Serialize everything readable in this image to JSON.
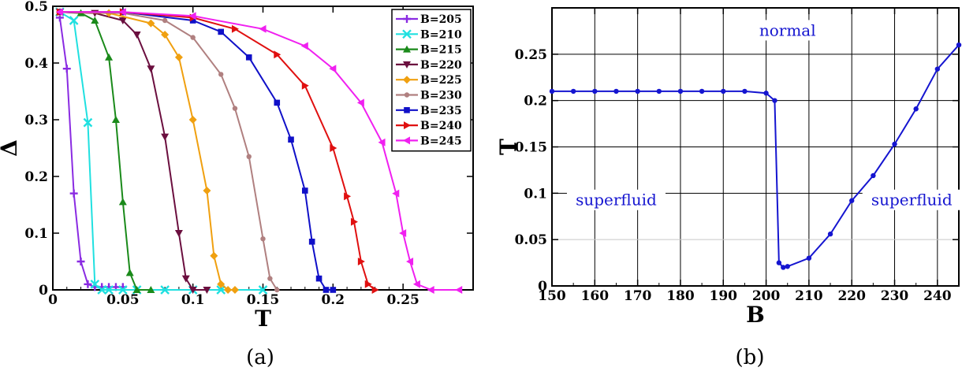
{
  "captions": [
    "(a)",
    "(b)"
  ],
  "chart_data": [
    {
      "type": "line",
      "xlabel": "T",
      "ylabel": "Δ",
      "xlim": [
        0,
        0.3
      ],
      "ylim": [
        0,
        0.5
      ],
      "x_ticks": [
        0,
        0.05,
        0.1,
        0.15,
        0.2,
        0.25
      ],
      "x_tick_labels": [
        "0",
        "0.05",
        "0.1",
        "0.15",
        "0.2",
        "0.25"
      ],
      "y_ticks": [
        0,
        0.1,
        0.2,
        0.3,
        0.4,
        0.5
      ],
      "y_tick_labels": [
        "0",
        "0.1",
        "0.2",
        "0.3",
        "0.4",
        "0.5"
      ],
      "grid": false,
      "legend_position": "top-right",
      "series": [
        {
          "name": "B=205",
          "color": "#8a2be2",
          "marker": "plus",
          "x": [
            0.005,
            0.01,
            0.015,
            0.02,
            0.025,
            0.03,
            0.035,
            0.04,
            0.045,
            0.05
          ],
          "y": [
            0.48,
            0.39,
            0.17,
            0.05,
            0.01,
            0.005,
            0.005,
            0.005,
            0.005,
            0.005
          ]
        },
        {
          "name": "B=210",
          "color": "#20e0e0",
          "marker": "x",
          "x": [
            0.005,
            0.015,
            0.025,
            0.03,
            0.035,
            0.04,
            0.05,
            0.06,
            0.08,
            0.1,
            0.12,
            0.15
          ],
          "y": [
            0.49,
            0.475,
            0.295,
            0.01,
            0.0,
            0.0,
            0.0,
            0.0,
            0.0,
            0.0,
            0.0,
            0.0
          ]
        },
        {
          "name": "B=215",
          "color": "#1a8a1a",
          "marker": "triangle-up",
          "x": [
            0.005,
            0.02,
            0.03,
            0.04,
            0.045,
            0.05,
            0.055,
            0.06,
            0.07
          ],
          "y": [
            0.49,
            0.488,
            0.475,
            0.41,
            0.3,
            0.155,
            0.03,
            0.0,
            0.0
          ]
        },
        {
          "name": "B=220",
          "color": "#6b0f3f",
          "marker": "triangle-down",
          "x": [
            0.005,
            0.03,
            0.05,
            0.06,
            0.07,
            0.08,
            0.09,
            0.095,
            0.1,
            0.11
          ],
          "y": [
            0.49,
            0.488,
            0.475,
            0.45,
            0.39,
            0.27,
            0.1,
            0.02,
            0.0,
            0.0
          ]
        },
        {
          "name": "B=225",
          "color": "#f0a010",
          "marker": "diamond",
          "x": [
            0.005,
            0.04,
            0.07,
            0.08,
            0.09,
            0.1,
            0.11,
            0.115,
            0.12,
            0.125,
            0.13
          ],
          "y": [
            0.49,
            0.488,
            0.47,
            0.45,
            0.41,
            0.3,
            0.175,
            0.06,
            0.01,
            0.0,
            0.0
          ]
        },
        {
          "name": "B=230",
          "color": "#b08080",
          "marker": "circle",
          "x": [
            0.005,
            0.05,
            0.08,
            0.1,
            0.12,
            0.13,
            0.14,
            0.15,
            0.155,
            0.16
          ],
          "y": [
            0.49,
            0.488,
            0.475,
            0.445,
            0.38,
            0.32,
            0.235,
            0.09,
            0.02,
            0.0
          ]
        },
        {
          "name": "B=235",
          "color": "#1010c8",
          "marker": "square",
          "x": [
            0.005,
            0.05,
            0.1,
            0.12,
            0.14,
            0.16,
            0.17,
            0.18,
            0.185,
            0.19,
            0.195,
            0.2
          ],
          "y": [
            0.49,
            0.49,
            0.475,
            0.455,
            0.41,
            0.33,
            0.265,
            0.175,
            0.085,
            0.02,
            0.0,
            0.0
          ]
        },
        {
          "name": "B=240",
          "color": "#e01010",
          "marker": "triangle-right",
          "x": [
            0.005,
            0.05,
            0.1,
            0.13,
            0.16,
            0.18,
            0.2,
            0.21,
            0.215,
            0.22,
            0.225,
            0.23
          ],
          "y": [
            0.49,
            0.49,
            0.48,
            0.46,
            0.415,
            0.36,
            0.25,
            0.165,
            0.12,
            0.05,
            0.01,
            0.0
          ]
        },
        {
          "name": "B=245",
          "color": "#f020f0",
          "marker": "triangle-left",
          "x": [
            0.005,
            0.05,
            0.1,
            0.15,
            0.18,
            0.2,
            0.22,
            0.235,
            0.245,
            0.25,
            0.255,
            0.26,
            0.27,
            0.29
          ],
          "y": [
            0.49,
            0.49,
            0.483,
            0.46,
            0.43,
            0.39,
            0.33,
            0.26,
            0.17,
            0.1,
            0.05,
            0.01,
            0.0,
            0.0
          ]
        }
      ]
    },
    {
      "type": "line",
      "xlabel": "B",
      "ylabel": "T",
      "xlim": [
        150,
        245
      ],
      "ylim": [
        0,
        0.3
      ],
      "x_ticks": [
        150,
        160,
        170,
        180,
        190,
        200,
        210,
        220,
        230,
        240
      ],
      "x_tick_labels": [
        "150",
        "160",
        "170",
        "180",
        "190",
        "200",
        "210",
        "220",
        "230",
        "240"
      ],
      "y_ticks": [
        0,
        0.05,
        0.1,
        0.15,
        0.2,
        0.25
      ],
      "y_tick_labels": [
        "0",
        "0.05",
        "0.1",
        "0.15",
        "0.2",
        "0.25"
      ],
      "grid": true,
      "annotations": [
        {
          "text": "normal",
          "x": 205,
          "y": 0.275
        },
        {
          "text": "superfluid",
          "x": 165,
          "y": 0.092
        },
        {
          "text": "superfluid",
          "x": 234,
          "y": 0.092
        }
      ],
      "series": [
        {
          "name": "",
          "color": "#1515d0",
          "marker": "circle",
          "x": [
            150,
            155,
            160,
            165,
            170,
            175,
            180,
            185,
            190,
            195,
            200,
            202,
            203,
            204,
            205,
            210,
            215,
            220,
            225,
            230,
            235,
            240,
            245
          ],
          "y": [
            0.21,
            0.21,
            0.21,
            0.21,
            0.21,
            0.21,
            0.21,
            0.21,
            0.21,
            0.21,
            0.208,
            0.2,
            0.025,
            0.02,
            0.021,
            0.03,
            0.056,
            0.092,
            0.119,
            0.153,
            0.191,
            0.234,
            0.26
          ]
        }
      ]
    }
  ]
}
